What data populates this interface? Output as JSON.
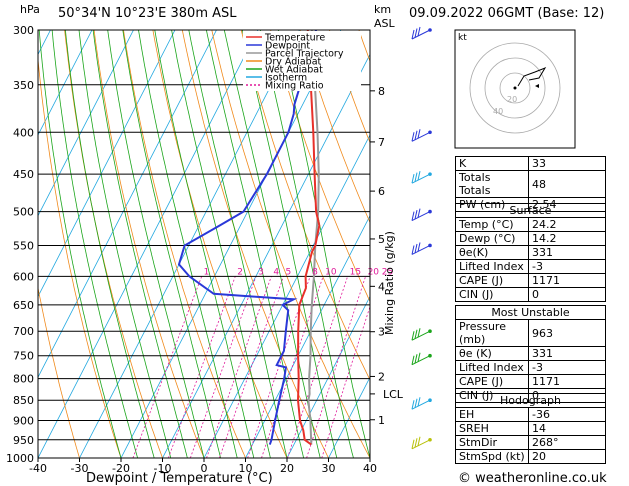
{
  "header": {
    "location": "50°34'N  10°23'E  380m  ASL",
    "datetime": "09.09.2022  06GMT  (Base: 12)",
    "left_unit": "hPa",
    "right_unit_top": "km",
    "right_unit_bottom": "ASL"
  },
  "credit": "© weatheronline.co.uk",
  "chart_data": {
    "type": "skew-t",
    "xlabel": "Dewpoint / Temperature (°C)",
    "ylabel_right": "Mixing Ratio (g/kg)",
    "x_ticks": [
      "-40",
      "-30",
      "-20",
      "-10",
      "0",
      "10",
      "20",
      "30",
      "40"
    ],
    "xlim": [
      -40,
      40
    ],
    "pressure_levels": [
      "300",
      "350",
      "400",
      "450",
      "500",
      "550",
      "600",
      "650",
      "700",
      "750",
      "800",
      "850",
      "900",
      "950",
      "1000"
    ],
    "ylim_hpa": [
      1000,
      300
    ],
    "km_ticks": [
      {
        "label": "8",
        "p": 356
      },
      {
        "label": "7",
        "p": 411
      },
      {
        "label": "6",
        "p": 472
      },
      {
        "label": "5",
        "p": 540
      },
      {
        "label": "4",
        "p": 617
      },
      {
        "label": "3",
        "p": 701
      },
      {
        "label": "2",
        "p": 795
      },
      {
        "label": "1",
        "p": 898
      }
    ],
    "lcl_label": "LCL",
    "lcl_hpa": 835,
    "mixing_ratio_labels": [
      "1",
      "2",
      "3",
      "4",
      "5",
      "8",
      "10",
      "15",
      "20",
      "25"
    ],
    "legend": [
      {
        "name": "Temperature",
        "color": "#e8302a"
      },
      {
        "name": "Dewpoint",
        "color": "#2a38d8"
      },
      {
        "name": "Parcel Trajectory",
        "color": "#999999"
      },
      {
        "name": "Dry Adiabat",
        "color": "#f08a1c"
      },
      {
        "name": "Wet Adiabat",
        "color": "#1aa51a"
      },
      {
        "name": "Isotherm",
        "color": "#22a8e0"
      },
      {
        "name": "Mixing Ratio",
        "color": "#e0199a"
      }
    ],
    "temperature": [
      [
        963,
        24.2
      ],
      [
        950,
        22
      ],
      [
        925,
        20.5
      ],
      [
        900,
        18.5
      ],
      [
        850,
        15.5
      ],
      [
        800,
        13
      ],
      [
        750,
        10
      ],
      [
        700,
        7
      ],
      [
        650,
        4
      ],
      [
        620,
        3.5
      ],
      [
        600,
        2
      ],
      [
        560,
        0.5
      ],
      [
        550,
        0.5
      ],
      [
        520,
        -1
      ],
      [
        500,
        -3.5
      ],
      [
        450,
        -8.5
      ],
      [
        400,
        -14
      ],
      [
        350,
        -20.5
      ],
      [
        300,
        -28
      ]
    ],
    "dewpoint": [
      [
        963,
        14.2
      ],
      [
        950,
        14
      ],
      [
        900,
        12.5
      ],
      [
        850,
        11
      ],
      [
        800,
        9.5
      ],
      [
        775,
        8.5
      ],
      [
        770,
        6
      ],
      [
        740,
        6
      ],
      [
        700,
        4
      ],
      [
        660,
        2
      ],
      [
        650,
        0
      ],
      [
        640,
        2
      ],
      [
        635,
        -8
      ],
      [
        630,
        -18
      ],
      [
        600,
        -26
      ],
      [
        580,
        -30
      ],
      [
        550,
        -31
      ],
      [
        520,
        -25
      ],
      [
        500,
        -21
      ],
      [
        450,
        -20
      ],
      [
        400,
        -20
      ],
      [
        380,
        -21
      ],
      [
        370,
        -22
      ],
      [
        350,
        -23
      ],
      [
        300,
        -26
      ]
    ],
    "parcel": [
      [
        963,
        24.2
      ],
      [
        900,
        21
      ],
      [
        850,
        18
      ],
      [
        835,
        17.5
      ],
      [
        800,
        15.5
      ],
      [
        750,
        13
      ],
      [
        700,
        10
      ],
      [
        650,
        7
      ],
      [
        600,
        4
      ],
      [
        550,
        0.5
      ],
      [
        500,
        -3
      ],
      [
        450,
        -7.5
      ],
      [
        400,
        -13
      ],
      [
        350,
        -19.5
      ],
      [
        300,
        -27
      ]
    ],
    "wind_barbs": [
      {
        "p": 300,
        "color": "#2a38d8"
      },
      {
        "p": 400,
        "color": "#2a38d8"
      },
      {
        "p": 450,
        "color": "#22a8e0"
      },
      {
        "p": 500,
        "color": "#2a38d8"
      },
      {
        "p": 550,
        "color": "#2a38d8"
      },
      {
        "p": 700,
        "color": "#1aa51a"
      },
      {
        "p": 750,
        "color": "#1aa51a"
      },
      {
        "p": 850,
        "color": "#22a8e0"
      },
      {
        "p": 950,
        "color": "#b9c10a"
      }
    ]
  },
  "hodograph": {
    "unit_label": "kt",
    "ring_labels": [
      "20",
      "40"
    ],
    "trace_color": "#000000",
    "storm_color": "#000000"
  },
  "indices": {
    "top": [
      {
        "label": "K",
        "value": "33"
      },
      {
        "label": "Totals Totals",
        "value": "48"
      },
      {
        "label": "PW (cm)",
        "value": "2.54"
      }
    ],
    "surface_title": "Surface",
    "surface": [
      {
        "label": "Temp (°C)",
        "value": "24.2"
      },
      {
        "label": "Dewp (°C)",
        "value": "14.2"
      },
      {
        "label": "θe(K)",
        "value": "331"
      },
      {
        "label": "Lifted Index",
        "value": "-3"
      },
      {
        "label": "CAPE (J)",
        "value": "1171"
      },
      {
        "label": "CIN (J)",
        "value": "0"
      }
    ],
    "mu_title": "Most Unstable",
    "most_unstable": [
      {
        "label": "Pressure (mb)",
        "value": "963"
      },
      {
        "label": "θe (K)",
        "value": "331"
      },
      {
        "label": "Lifted Index",
        "value": "-3"
      },
      {
        "label": "CAPE (J)",
        "value": "1171"
      },
      {
        "label": "CIN (J)",
        "value": "0"
      }
    ],
    "hodo_title": "Hodograph",
    "hodograph": [
      {
        "label": "EH",
        "value": "-36"
      },
      {
        "label": "SREH",
        "value": "14"
      },
      {
        "label": "StmDir",
        "value": "268°"
      },
      {
        "label": "StmSpd (kt)",
        "value": "20"
      }
    ]
  }
}
